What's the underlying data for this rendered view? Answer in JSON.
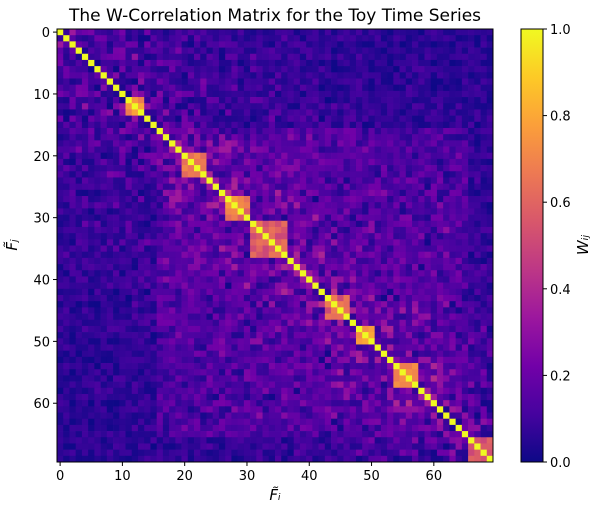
{
  "chart_data": {
    "type": "heatmap",
    "title": "The W-Correlation Matrix for the Toy Time Series",
    "xlabel": "F̃ᵢ",
    "ylabel": "F̃ⱼ",
    "colorbar_label": "Wᵢⱼ",
    "size": 70,
    "x_ticks": [
      0,
      10,
      20,
      30,
      40,
      50,
      60
    ],
    "y_ticks": [
      0,
      10,
      20,
      30,
      40,
      50,
      60
    ],
    "color_range": [
      0.0,
      1.0
    ],
    "colorbar_ticks": [
      "0.0",
      "0.2",
      "0.4",
      "0.6",
      "0.8",
      "1.0"
    ],
    "colormap": "plasma",
    "colormap_stops": [
      "#0d0887",
      "#46039f",
      "#7201a8",
      "#9c179e",
      "#bd3786",
      "#d8576b",
      "#ed7953",
      "#fb9f3a",
      "#fdca26",
      "#f0f921"
    ],
    "diagonal_value": 1.0,
    "high_blocks": [
      {
        "i": [
          11,
          13
        ],
        "j": [
          11,
          13
        ],
        "value": 0.85
      },
      {
        "i": [
          20,
          23
        ],
        "j": [
          20,
          23
        ],
        "value": 0.72
      },
      {
        "i": [
          27,
          30
        ],
        "j": [
          27,
          30
        ],
        "value": 0.78
      },
      {
        "i": [
          31,
          36
        ],
        "j": [
          31,
          36
        ],
        "value": 0.65
      },
      {
        "i": [
          43,
          46
        ],
        "j": [
          43,
          46
        ],
        "value": 0.68
      },
      {
        "i": [
          48,
          50
        ],
        "j": [
          48,
          50
        ],
        "value": 0.8
      },
      {
        "i": [
          54,
          57
        ],
        "j": [
          54,
          57
        ],
        "value": 0.75
      },
      {
        "i": [
          66,
          69
        ],
        "j": [
          66,
          69
        ],
        "value": 0.6
      }
    ],
    "background_level": 0.1,
    "noise_level": 0.3
  }
}
